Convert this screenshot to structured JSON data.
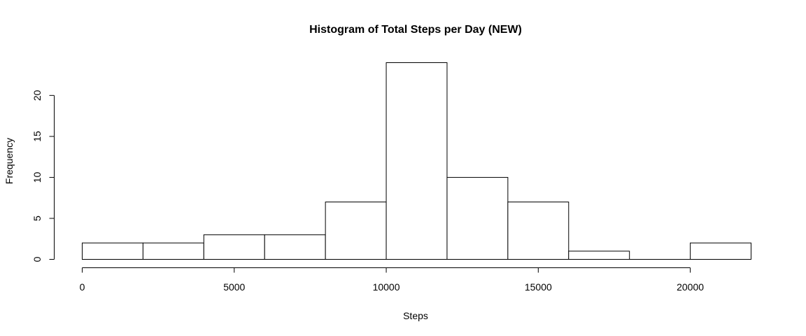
{
  "chart_data": {
    "type": "bar",
    "title": "Histogram of Total Steps per Day (NEW)",
    "xlabel": "Steps",
    "ylabel": "Frequency",
    "bins": [
      {
        "start": 0,
        "end": 2000,
        "count": 2
      },
      {
        "start": 2000,
        "end": 4000,
        "count": 2
      },
      {
        "start": 4000,
        "end": 6000,
        "count": 3
      },
      {
        "start": 6000,
        "end": 8000,
        "count": 3
      },
      {
        "start": 8000,
        "end": 10000,
        "count": 7
      },
      {
        "start": 10000,
        "end": 12000,
        "count": 24
      },
      {
        "start": 12000,
        "end": 14000,
        "count": 10
      },
      {
        "start": 14000,
        "end": 16000,
        "count": 7
      },
      {
        "start": 16000,
        "end": 18000,
        "count": 1
      },
      {
        "start": 18000,
        "end": 20000,
        "count": 0
      },
      {
        "start": 20000,
        "end": 22000,
        "count": 2
      }
    ],
    "x_ticks": [
      0,
      5000,
      10000,
      15000,
      20000
    ],
    "y_ticks": [
      0,
      5,
      10,
      15,
      20
    ],
    "xlim": [
      0,
      22000
    ],
    "ylim": [
      0,
      24
    ],
    "grid": false,
    "legend": "none"
  }
}
